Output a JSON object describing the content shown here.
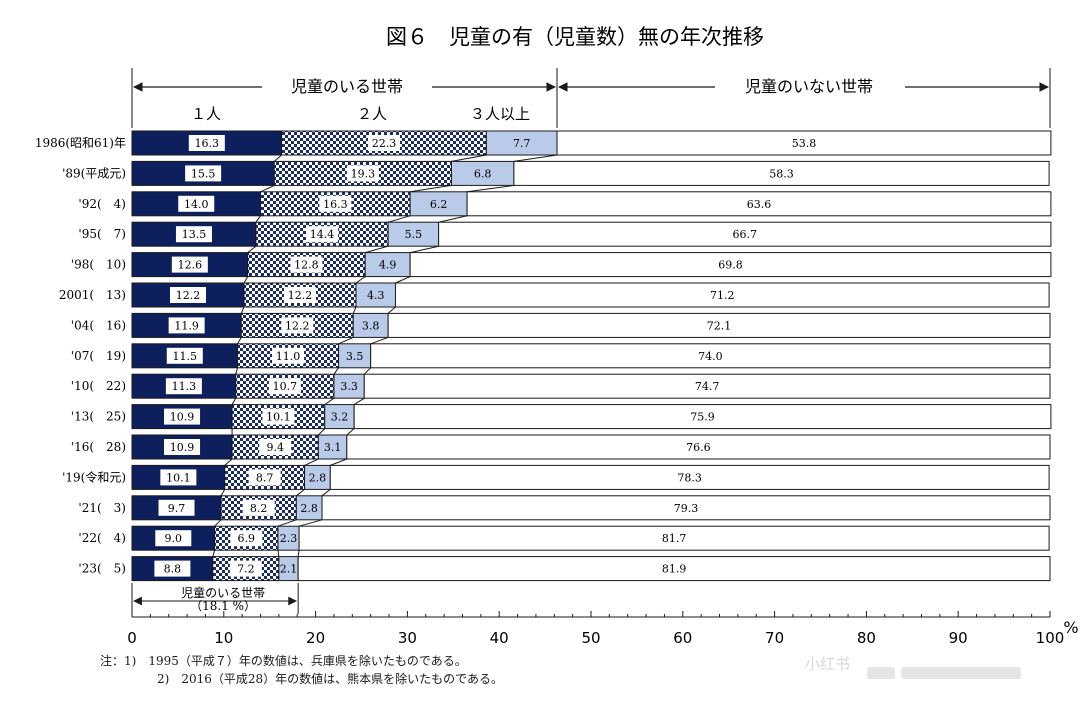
{
  "chart_data": {
    "type": "bar",
    "orientation": "horizontal",
    "stacked": true,
    "title": "図６　児童の有（児童数）無の年次推移",
    "categories": [
      "1986(昭和61)年",
      "'89(平成元)",
      "'92(　4)",
      "'95(　7)",
      "'98(　10)",
      "2001(　13)",
      "'04(　16)",
      "'07(　19)",
      "'10(　22)",
      "'13(　25)",
      "'16(　28)",
      "'19(令和元)",
      "'21(　3)",
      "'22(　4)",
      "'23(　5)"
    ],
    "series": [
      {
        "name": "１人",
        "color": "#0d1f5c",
        "values": [
          16.3,
          15.5,
          14.0,
          13.5,
          12.6,
          12.2,
          11.9,
          11.5,
          11.3,
          10.9,
          10.9,
          10.1,
          9.7,
          9.0,
          8.8
        ]
      },
      {
        "name": "２人",
        "pattern": "checker",
        "values": [
          22.3,
          19.3,
          16.3,
          14.4,
          12.8,
          12.2,
          12.2,
          11.0,
          10.7,
          10.1,
          9.4,
          8.7,
          8.2,
          6.9,
          7.2
        ]
      },
      {
        "name": "３人以上",
        "color": "#b9cbe8",
        "values": [
          7.7,
          6.8,
          6.2,
          5.5,
          4.9,
          4.3,
          3.8,
          3.5,
          3.3,
          3.2,
          3.1,
          2.8,
          2.8,
          2.3,
          2.1
        ]
      },
      {
        "name": "児童のいない世帯",
        "color": "#ffffff",
        "values": [
          53.8,
          58.3,
          63.6,
          66.7,
          69.8,
          71.2,
          72.1,
          74.0,
          74.7,
          75.9,
          76.6,
          78.3,
          79.3,
          81.7,
          81.9
        ]
      }
    ],
    "labels": {
      "one": [
        "16.3",
        "15.5",
        "14.0",
        "13.5",
        "12.6",
        "12.2",
        "11.9",
        "11.5",
        "11.3",
        "10.9",
        "10.9",
        "10.1",
        "9.7",
        "9.0",
        "8.8"
      ],
      "two": [
        "22.3",
        "19.3",
        "16.3",
        "14.4",
        "12.8",
        "12.2",
        "12.2",
        "11.0",
        "10.7",
        "10.1",
        "9.4",
        "8.7",
        "8.2",
        "6.9",
        "7.2"
      ],
      "three": [
        "7.7",
        "6.8",
        "6.2",
        "5.5",
        "4.9",
        "4.3",
        "3.8",
        "3.5",
        "3.3",
        "3.2",
        "3.1",
        "2.8",
        "2.8",
        "2.3",
        "2.1"
      ],
      "none": [
        "53.8",
        "58.3",
        "63.6",
        "66.7",
        "69.8",
        "71.2",
        "72.1",
        "74.0",
        "74.7",
        "75.9",
        "76.6",
        "78.3",
        "79.3",
        "81.7",
        "81.9"
      ]
    },
    "xlim": [
      0,
      100
    ],
    "xticks": [
      0,
      10,
      20,
      30,
      40,
      50,
      60,
      70,
      80,
      90,
      100
    ],
    "xunit": "%",
    "header_with_children": "児童のいる世帯",
    "header_without_children": "児童のいない世帯",
    "col_one": "１人",
    "col_two": "２人",
    "col_three": "３人以上",
    "annotation_line1": "児童のいる世帯",
    "annotation_line2": "（18.1 %）",
    "annotation_value": 18.1
  },
  "notes": {
    "line1": "注：1)　1995（平成７）年の数値は、兵庫県を除いたものである。",
    "line2": "2)　2016（平成28）年の数値は、熊本県を除いたものである。"
  },
  "watermark": "小红书"
}
